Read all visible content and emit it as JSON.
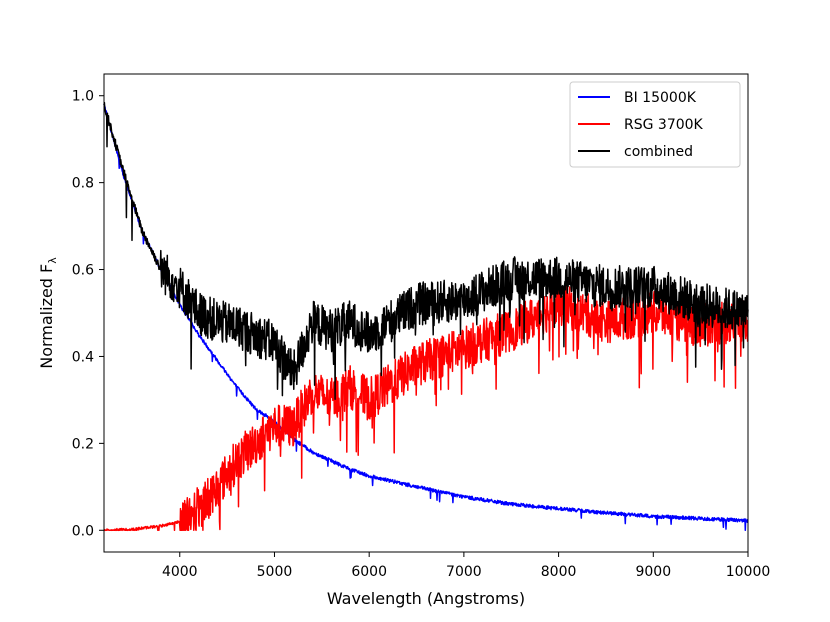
{
  "chart_data": {
    "type": "line",
    "title": "",
    "xlabel": "Wavelength (Angstroms)",
    "ylabel_main": "Normalized F",
    "ylabel_sub": "λ",
    "xlim": [
      3200,
      10000
    ],
    "ylim": [
      -0.05,
      1.05
    ],
    "xticks": [
      4000,
      5000,
      6000,
      7000,
      8000,
      9000,
      10000
    ],
    "xtick_labels": [
      "4000",
      "5000",
      "6000",
      "7000",
      "8000",
      "9000",
      "10000"
    ],
    "yticks": [
      0.0,
      0.2,
      0.4,
      0.6,
      0.8,
      1.0
    ],
    "ytick_labels": [
      "0.0",
      "0.2",
      "0.4",
      "0.6",
      "0.8",
      "1.0"
    ],
    "legend_position": "top-right",
    "series": [
      {
        "name": "BI 15000K",
        "color": "#0000ff",
        "x": [
          3200,
          3400,
          3600,
          3800,
          4000,
          4200,
          4400,
          4600,
          4800,
          5000,
          5200,
          5400,
          5600,
          5800,
          6000,
          6500,
          7000,
          7500,
          8000,
          8500,
          9000,
          9500,
          10000
        ],
        "values": [
          0.98,
          0.82,
          0.69,
          0.6,
          0.52,
          0.45,
          0.39,
          0.33,
          0.28,
          0.25,
          0.21,
          0.18,
          0.16,
          0.14,
          0.125,
          0.1,
          0.077,
          0.06,
          0.05,
          0.04,
          0.032,
          0.027,
          0.022
        ]
      },
      {
        "name": "RSG 3700K",
        "color": "#ff0000",
        "x": [
          3200,
          3500,
          3800,
          4000,
          4200,
          4400,
          4600,
          4800,
          5000,
          5200,
          5400,
          5600,
          5800,
          6000,
          6500,
          7000,
          7500,
          8000,
          8500,
          9000,
          9500,
          10000
        ],
        "values": [
          0.0,
          0.002,
          0.01,
          0.02,
          0.05,
          0.1,
          0.16,
          0.2,
          0.24,
          0.24,
          0.32,
          0.3,
          0.33,
          0.3,
          0.38,
          0.42,
          0.46,
          0.52,
          0.48,
          0.5,
          0.47,
          0.48
        ]
      },
      {
        "name": "combined",
        "color": "#000000",
        "x": [
          3200,
          3400,
          3600,
          3800,
          4000,
          4200,
          4400,
          4600,
          4800,
          5000,
          5200,
          5400,
          5600,
          5800,
          6000,
          6500,
          7000,
          7500,
          8000,
          8500,
          9000,
          9500,
          10000
        ],
        "values": [
          0.98,
          0.83,
          0.69,
          0.6,
          0.56,
          0.5,
          0.48,
          0.47,
          0.45,
          0.43,
          0.36,
          0.48,
          0.46,
          0.48,
          0.45,
          0.52,
          0.53,
          0.58,
          0.58,
          0.56,
          0.56,
          0.52,
          0.5
        ]
      }
    ]
  }
}
